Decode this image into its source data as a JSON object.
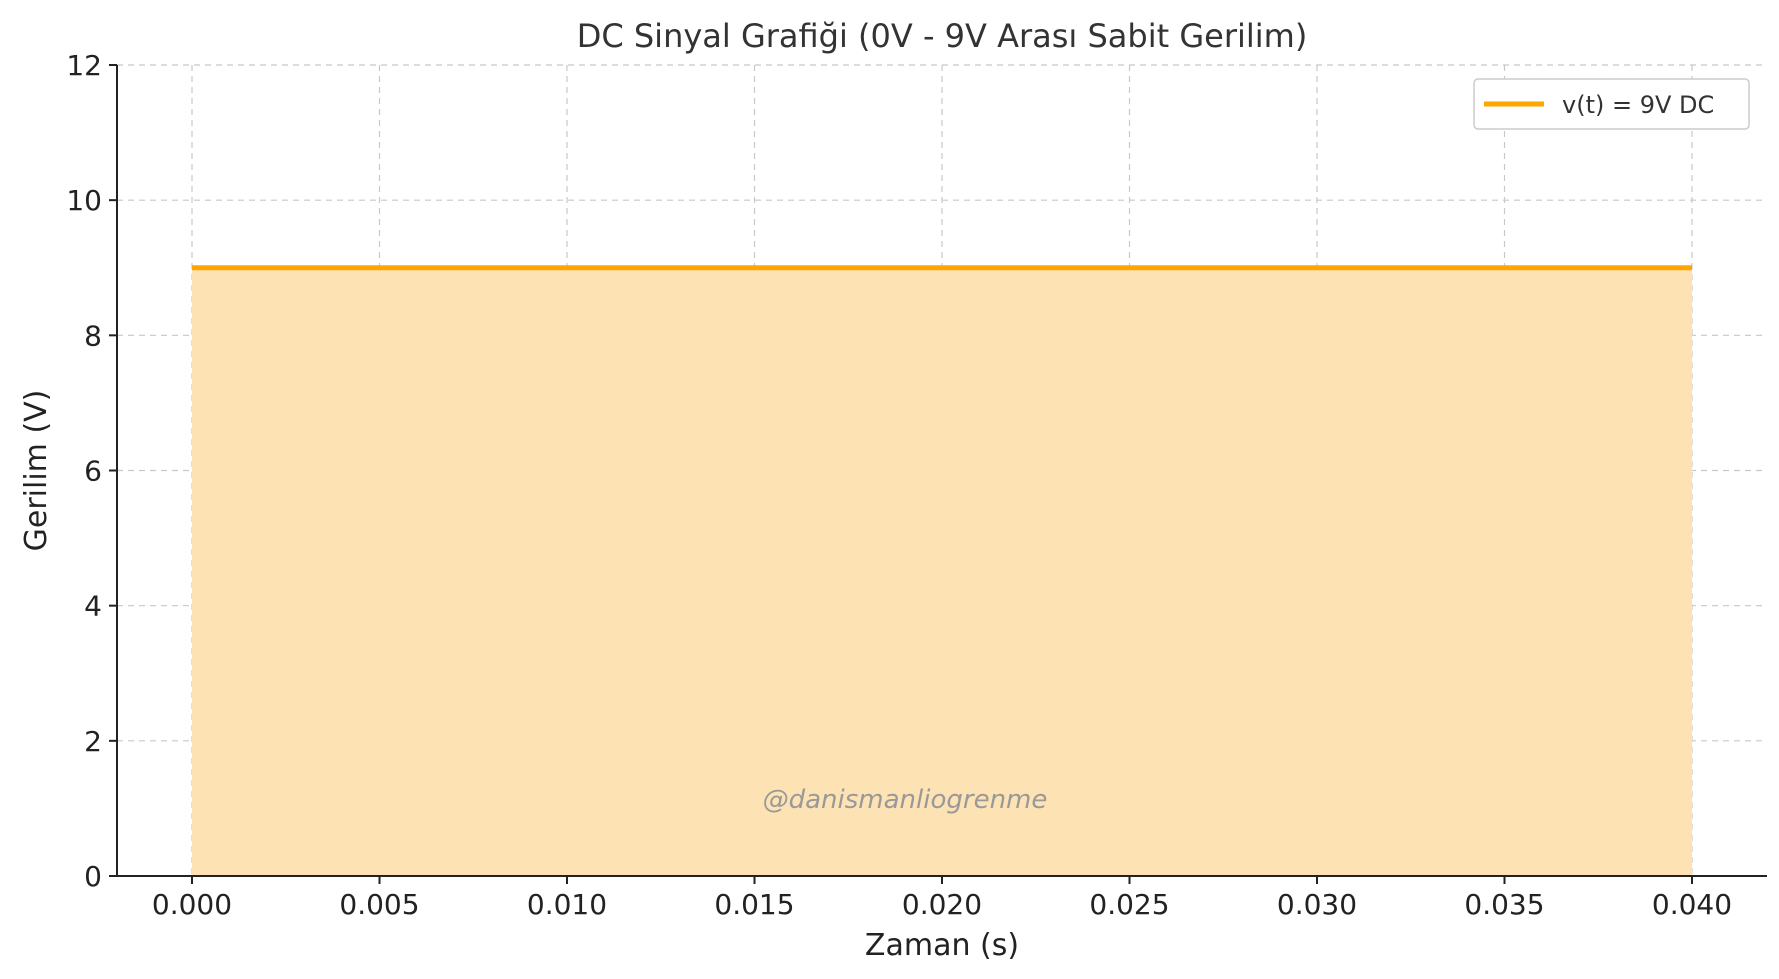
{
  "chart_data": {
    "type": "area",
    "title": "DC Sinyal Grafiği (0V - 9V Arası Sabit Gerilim)",
    "xlabel": "Zaman (s)",
    "ylabel": "Gerilim (V)",
    "xlim": [
      -0.002,
      0.042
    ],
    "ylim": [
      0,
      12
    ],
    "xticks": [
      0.0,
      0.005,
      0.01,
      0.015,
      0.02,
      0.025,
      0.03,
      0.035,
      0.04
    ],
    "xtick_labels": [
      "0.000",
      "0.005",
      "0.010",
      "0.015",
      "0.020",
      "0.025",
      "0.030",
      "0.035",
      "0.040"
    ],
    "yticks": [
      0,
      2,
      4,
      6,
      8,
      10,
      12
    ],
    "ytick_labels": [
      "0",
      "2",
      "4",
      "6",
      "8",
      "10",
      "12"
    ],
    "grid": true,
    "legend_position": "top-right",
    "series": [
      {
        "name": "v(t) = 9V DC",
        "x": [
          0.0,
          0.04
        ],
        "y": [
          9,
          9
        ],
        "color": "#FFA500",
        "fill_color": "#FDE2B3",
        "fill_to": 0
      }
    ],
    "watermark": "@danismanliogrenme"
  }
}
